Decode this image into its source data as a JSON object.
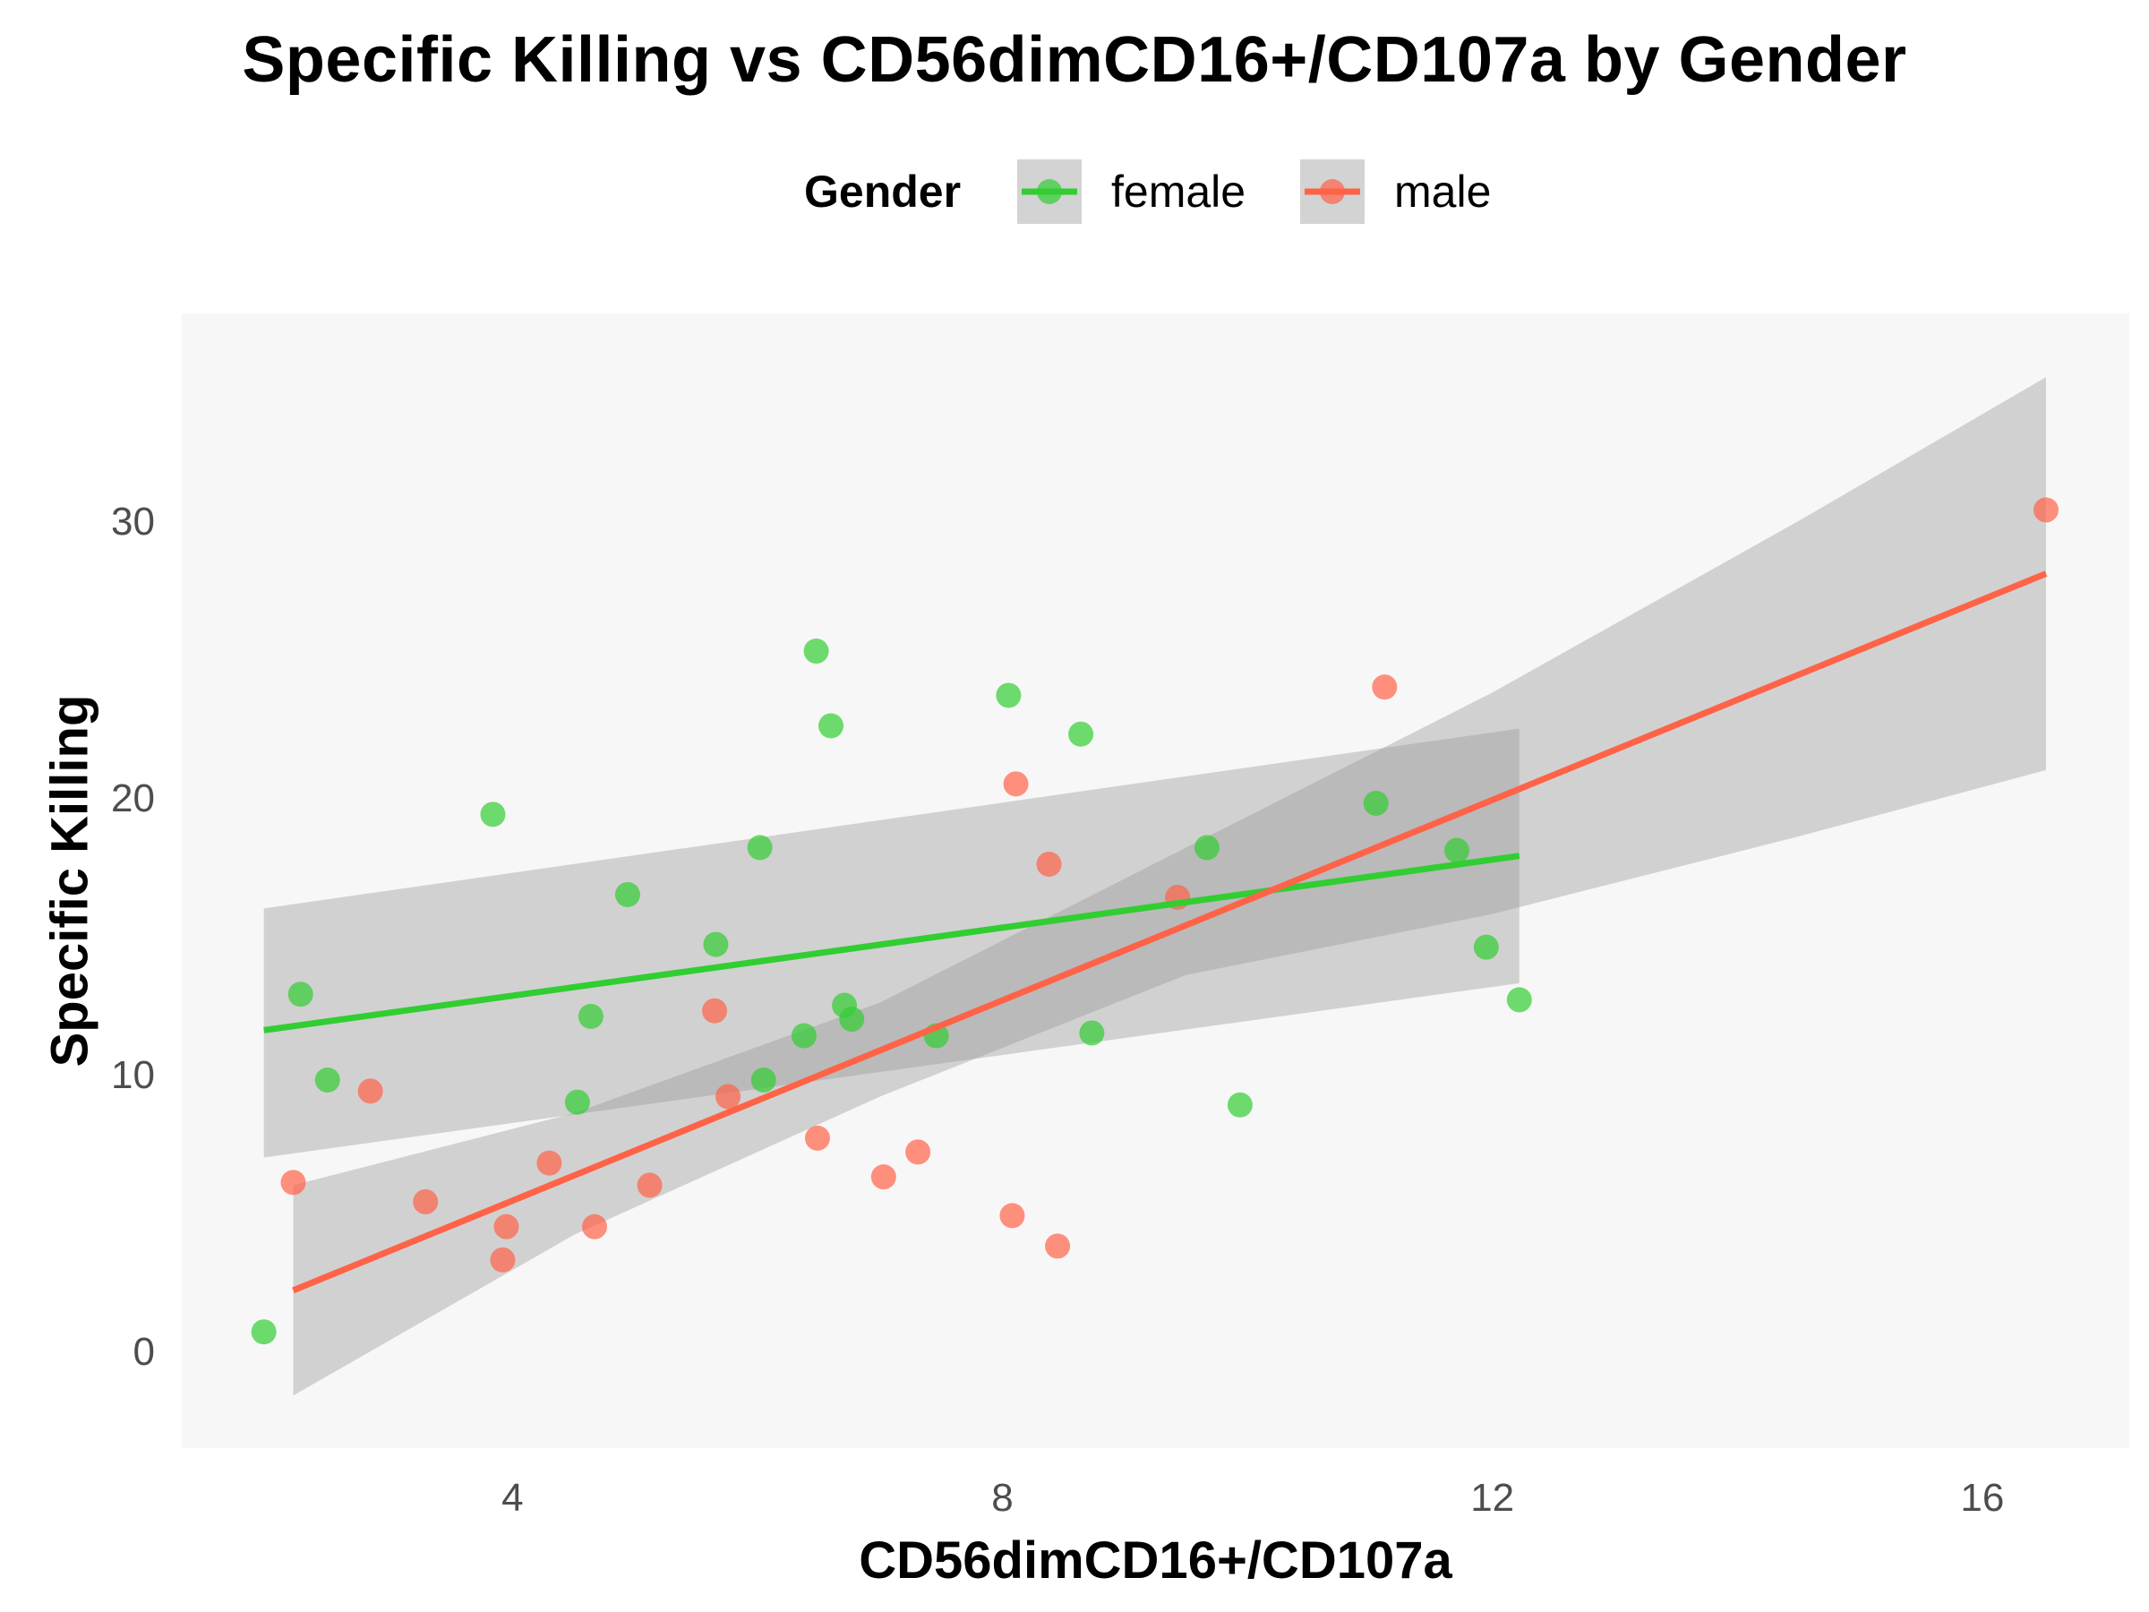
{
  "chart_data": {
    "type": "scatter",
    "title": "Specific Killing vs CD56dimCD16+/CD107a by Gender",
    "xlabel": "CD56dimCD16+/CD107a",
    "ylabel": "Specific Killing",
    "xlim": [
      1.3,
      17.2
    ],
    "ylim": [
      -3.5,
      37.5
    ],
    "x_ticks": [
      4,
      8,
      12,
      16
    ],
    "y_ticks": [
      0,
      10,
      20,
      30
    ],
    "grid": false,
    "panel_background": "#f7f7f7",
    "legend": {
      "title": "Gender",
      "position": "top",
      "entries": [
        "female",
        "male"
      ]
    },
    "series": [
      {
        "name": "female",
        "color": "#32cd32",
        "points": [
          [
            1.97,
            0.7
          ],
          [
            2.27,
            12.9
          ],
          [
            2.49,
            9.8
          ],
          [
            3.84,
            19.4
          ],
          [
            4.53,
            9.0
          ],
          [
            4.64,
            12.1
          ],
          [
            4.94,
            16.5
          ],
          [
            5.66,
            14.7
          ],
          [
            6.02,
            18.2
          ],
          [
            6.05,
            9.8
          ],
          [
            6.38,
            11.4
          ],
          [
            6.48,
            25.3
          ],
          [
            6.6,
            22.6
          ],
          [
            6.71,
            12.5
          ],
          [
            6.77,
            12.0
          ],
          [
            7.46,
            11.4
          ],
          [
            8.05,
            23.7
          ],
          [
            8.64,
            22.3
          ],
          [
            8.73,
            11.5
          ],
          [
            9.67,
            18.2
          ],
          [
            9.94,
            8.9
          ],
          [
            11.05,
            19.8
          ],
          [
            11.71,
            18.1
          ],
          [
            11.95,
            14.6
          ],
          [
            12.22,
            12.7
          ]
        ],
        "fit": {
          "x": [
            1.97,
            12.22
          ],
          "y": [
            11.6,
            17.9
          ]
        },
        "ci_band": {
          "x": [
            1.97,
            12.22
          ],
          "lower": [
            7.0,
            13.3
          ],
          "upper": [
            16.0,
            22.5
          ]
        }
      },
      {
        "name": "male",
        "color": "#ff6347",
        "points": [
          [
            2.21,
            6.1
          ],
          [
            2.84,
            9.4
          ],
          [
            3.29,
            5.4
          ],
          [
            3.92,
            3.3
          ],
          [
            3.95,
            4.5
          ],
          [
            4.3,
            6.8
          ],
          [
            4.67,
            4.5
          ],
          [
            5.12,
            6.0
          ],
          [
            5.65,
            12.3
          ],
          [
            5.76,
            9.2
          ],
          [
            6.49,
            7.7
          ],
          [
            7.03,
            6.3
          ],
          [
            7.31,
            7.2
          ],
          [
            8.08,
            4.9
          ],
          [
            8.11,
            20.5
          ],
          [
            8.38,
            17.6
          ],
          [
            8.45,
            3.8
          ],
          [
            9.43,
            16.4
          ],
          [
            11.12,
            24.0
          ],
          [
            16.52,
            30.4
          ]
        ],
        "fit": {
          "x": [
            2.21,
            16.52
          ],
          "y": [
            2.2,
            28.1
          ]
        },
        "ci_band": {
          "x": [
            2.21,
            4.5,
            7.0,
            9.5,
            12.0,
            14.5,
            16.52
          ],
          "lower": [
            -1.6,
            4.2,
            9.2,
            13.6,
            15.8,
            18.6,
            21.0
          ],
          "upper": [
            6.0,
            8.6,
            12.6,
            18.2,
            23.8,
            30.0,
            35.2
          ]
        }
      }
    ]
  }
}
